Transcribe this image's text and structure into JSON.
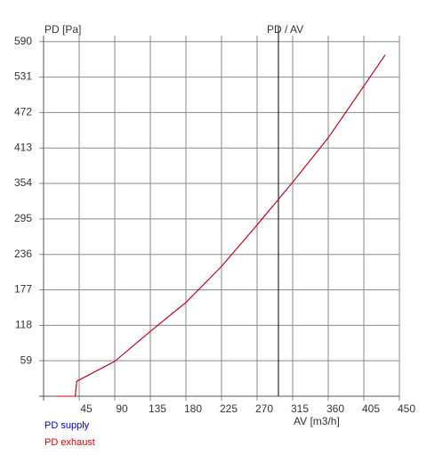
{
  "chart_data": {
    "type": "line",
    "y_label": "PD [Pa]",
    "x_label": "AV [m3/h]",
    "annotation": {
      "text": "PD / AV",
      "x": 297
    },
    "x": [
      18,
      40,
      42,
      90,
      135,
      180,
      225,
      270,
      315,
      360,
      405,
      432
    ],
    "series": [
      {
        "name": "PD supply",
        "color": "#0000cc",
        "values": [
          0,
          0,
          25,
          58,
          108,
          156,
          216,
          285,
          356,
          430,
          516,
          568
        ]
      },
      {
        "name": "PD exhaust",
        "color": "#dd0000",
        "values": [
          0,
          0,
          25,
          58,
          108,
          156,
          216,
          285,
          356,
          430,
          516,
          568
        ]
      }
    ],
    "xlim": [
      0,
      450
    ],
    "ylim": [
      0,
      600
    ],
    "xticks": [
      45,
      90,
      135,
      180,
      225,
      270,
      315,
      360,
      405,
      450
    ],
    "yticks": [
      59,
      118,
      177,
      236,
      295,
      354,
      413,
      472,
      531,
      590
    ],
    "grid": true
  }
}
